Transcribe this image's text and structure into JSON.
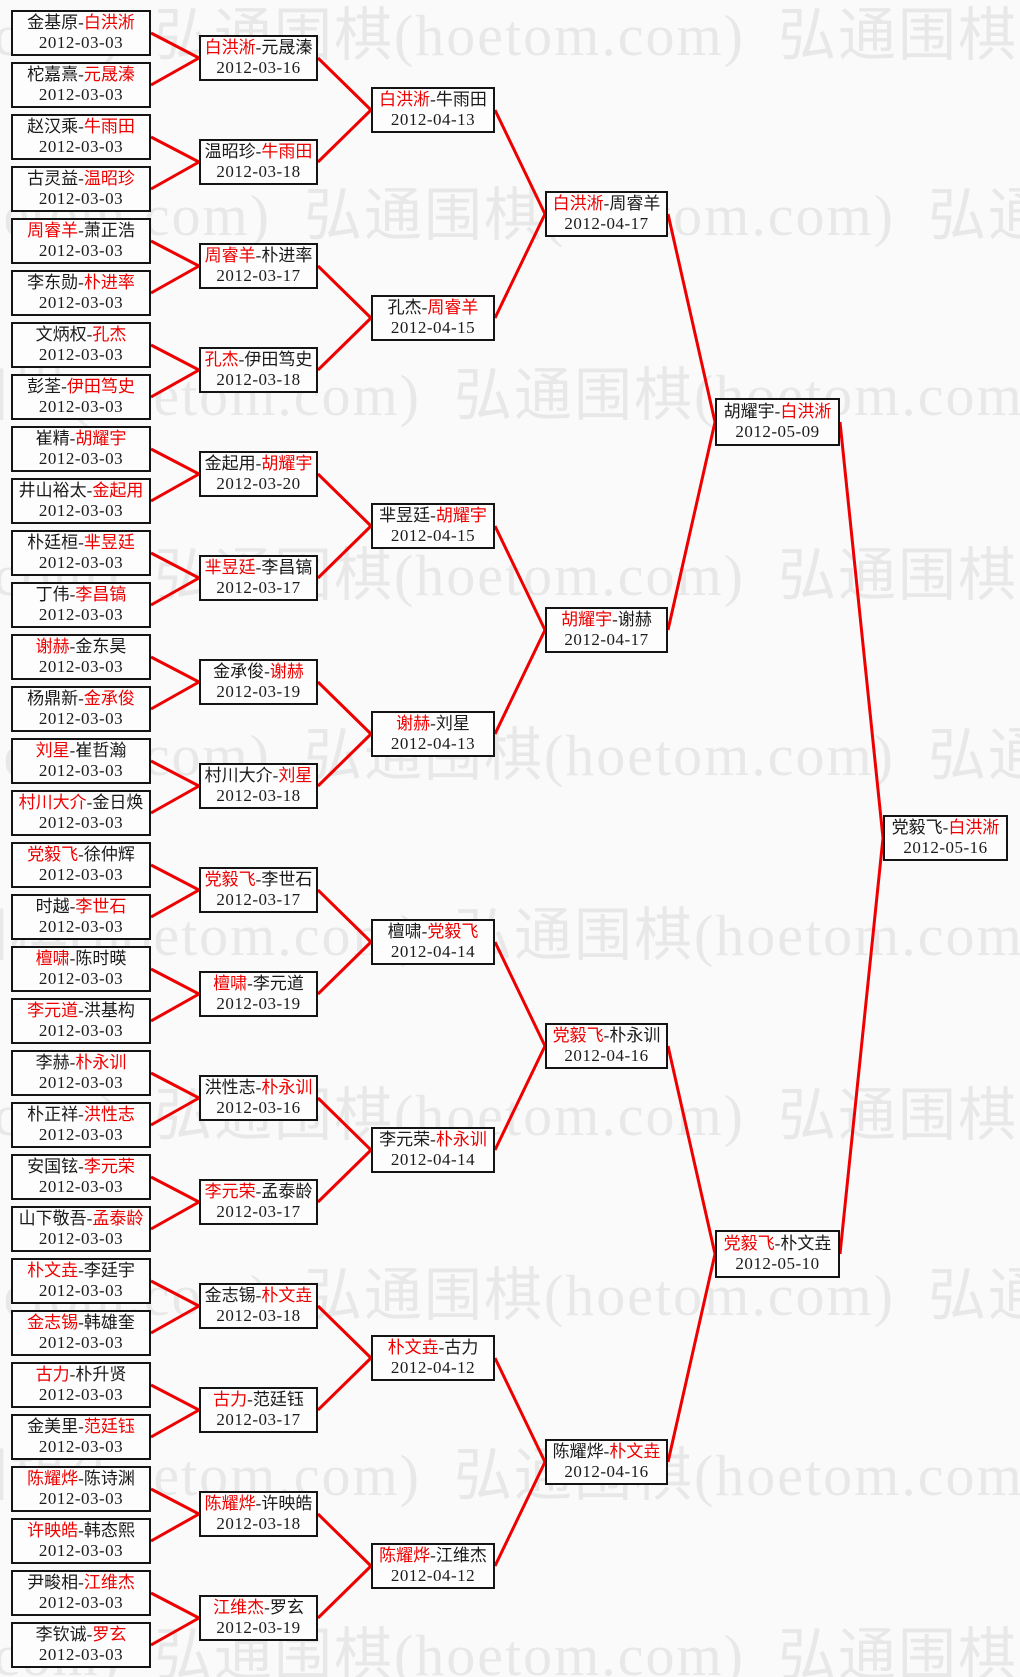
{
  "watermark": {
    "text": "弘通围棋(hoetom.com)"
  },
  "separator": "-",
  "colors": {
    "winner_red": "#ee0000",
    "connector_red": "#ee0000",
    "box_border": "#141414",
    "box_background": "#fdfdfd",
    "page_background": "#fafafa",
    "watermark_gray": "#e9e8e8"
  },
  "bracket": {
    "rounds": [
      {
        "name": "round-of-64",
        "matches": [
          {
            "p1": "金基原",
            "p2": "白洪淅",
            "winner": 2,
            "date": "2012-03-03"
          },
          {
            "p1": "柁嘉熹",
            "p2": "元晟溱",
            "winner": 2,
            "date": "2012-03-03"
          },
          {
            "p1": "赵汉乘",
            "p2": "牛雨田",
            "winner": 2,
            "date": "2012-03-03"
          },
          {
            "p1": "古灵益",
            "p2": "温昭珍",
            "winner": 2,
            "date": "2012-03-03"
          },
          {
            "p1": "周睿羊",
            "p2": "萧正浩",
            "winner": 1,
            "date": "2012-03-03"
          },
          {
            "p1": "李东勋",
            "p2": "朴进率",
            "winner": 2,
            "date": "2012-03-03"
          },
          {
            "p1": "文炳权",
            "p2": "孔杰",
            "winner": 2,
            "date": "2012-03-03"
          },
          {
            "p1": "彭荃",
            "p2": "伊田笃史",
            "winner": 2,
            "date": "2012-03-03"
          },
          {
            "p1": "崔精",
            "p2": "胡耀宇",
            "winner": 2,
            "date": "2012-03-03"
          },
          {
            "p1": "井山裕太",
            "p2": "金起用",
            "winner": 2,
            "date": "2012-03-03"
          },
          {
            "p1": "朴廷桓",
            "p2": "芈昱廷",
            "winner": 2,
            "date": "2012-03-03"
          },
          {
            "p1": "丁伟",
            "p2": "李昌镐",
            "winner": 2,
            "date": "2012-03-03"
          },
          {
            "p1": "谢赫",
            "p2": "金东昊",
            "winner": 1,
            "date": "2012-03-03"
          },
          {
            "p1": "杨鼎新",
            "p2": "金承俊",
            "winner": 2,
            "date": "2012-03-03"
          },
          {
            "p1": "刘星",
            "p2": "崔哲瀚",
            "winner": 1,
            "date": "2012-03-03"
          },
          {
            "p1": "村川大介",
            "p2": "金日焕",
            "winner": 1,
            "date": "2012-03-03"
          },
          {
            "p1": "党毅飞",
            "p2": "徐仲辉",
            "winner": 1,
            "date": "2012-03-03"
          },
          {
            "p1": "时越",
            "p2": "李世石",
            "winner": 2,
            "date": "2012-03-03"
          },
          {
            "p1": "檀啸",
            "p2": "陈时暎",
            "winner": 1,
            "date": "2012-03-03"
          },
          {
            "p1": "李元道",
            "p2": "洪基构",
            "winner": 1,
            "date": "2012-03-03"
          },
          {
            "p1": "李赫",
            "p2": "朴永训",
            "winner": 2,
            "date": "2012-03-03"
          },
          {
            "p1": "朴正祥",
            "p2": "洪性志",
            "winner": 2,
            "date": "2012-03-03"
          },
          {
            "p1": "安国铉",
            "p2": "李元荣",
            "winner": 2,
            "date": "2012-03-03"
          },
          {
            "p1": "山下敬吾",
            "p2": "孟泰龄",
            "winner": 2,
            "date": "2012-03-03"
          },
          {
            "p1": "朴文垚",
            "p2": "李廷宇",
            "winner": 1,
            "date": "2012-03-03"
          },
          {
            "p1": "金志锡",
            "p2": "韩雄奎",
            "winner": 1,
            "date": "2012-03-03"
          },
          {
            "p1": "古力",
            "p2": "朴升贤",
            "winner": 1,
            "date": "2012-03-03"
          },
          {
            "p1": "金美里",
            "p2": "范廷钰",
            "winner": 2,
            "date": "2012-03-03"
          },
          {
            "p1": "陈耀烨",
            "p2": "陈诗渊",
            "winner": 1,
            "date": "2012-03-03"
          },
          {
            "p1": "许映皓",
            "p2": "韩态熙",
            "winner": 1,
            "date": "2012-03-03"
          },
          {
            "p1": "尹畯相",
            "p2": "江维杰",
            "winner": 2,
            "date": "2012-03-03"
          },
          {
            "p1": "李钦诚",
            "p2": "罗玄",
            "winner": 2,
            "date": "2012-03-03"
          }
        ]
      },
      {
        "name": "round-of-32",
        "matches": [
          {
            "p1": "白洪淅",
            "p2": "元晟溱",
            "winner": 1,
            "date": "2012-03-16"
          },
          {
            "p1": "温昭珍",
            "p2": "牛雨田",
            "winner": 2,
            "date": "2012-03-18"
          },
          {
            "p1": "周睿羊",
            "p2": "朴进率",
            "winner": 1,
            "date": "2012-03-17"
          },
          {
            "p1": "孔杰",
            "p2": "伊田笃史",
            "winner": 1,
            "date": "2012-03-18"
          },
          {
            "p1": "金起用",
            "p2": "胡耀宇",
            "winner": 2,
            "date": "2012-03-20"
          },
          {
            "p1": "芈昱廷",
            "p2": "李昌镐",
            "winner": 1,
            "date": "2012-03-17"
          },
          {
            "p1": "金承俊",
            "p2": "谢赫",
            "winner": 2,
            "date": "2012-03-19"
          },
          {
            "p1": "村川大介",
            "p2": "刘星",
            "winner": 2,
            "date": "2012-03-18"
          },
          {
            "p1": "党毅飞",
            "p2": "李世石",
            "winner": 1,
            "date": "2012-03-17"
          },
          {
            "p1": "檀啸",
            "p2": "李元道",
            "winner": 1,
            "date": "2012-03-19"
          },
          {
            "p1": "洪性志",
            "p2": "朴永训",
            "winner": 2,
            "date": "2012-03-16"
          },
          {
            "p1": "李元荣",
            "p2": "孟泰龄",
            "winner": 1,
            "date": "2012-03-17"
          },
          {
            "p1": "金志锡",
            "p2": "朴文垚",
            "winner": 2,
            "date": "2012-03-18"
          },
          {
            "p1": "古力",
            "p2": "范廷钰",
            "winner": 1,
            "date": "2012-03-17"
          },
          {
            "p1": "陈耀烨",
            "p2": "许映皓",
            "winner": 1,
            "date": "2012-03-18"
          },
          {
            "p1": "江维杰",
            "p2": "罗玄",
            "winner": 1,
            "date": "2012-03-19"
          }
        ]
      },
      {
        "name": "round-of-16",
        "matches": [
          {
            "p1": "白洪淅",
            "p2": "牛雨田",
            "winner": 1,
            "date": "2012-04-13"
          },
          {
            "p1": "孔杰",
            "p2": "周睿羊",
            "winner": 2,
            "date": "2012-04-15"
          },
          {
            "p1": "芈昱廷",
            "p2": "胡耀宇",
            "winner": 2,
            "date": "2012-04-15"
          },
          {
            "p1": "谢赫",
            "p2": "刘星",
            "winner": 1,
            "date": "2012-04-13"
          },
          {
            "p1": "檀啸",
            "p2": "党毅飞",
            "winner": 2,
            "date": "2012-04-14"
          },
          {
            "p1": "李元荣",
            "p2": "朴永训",
            "winner": 2,
            "date": "2012-04-14"
          },
          {
            "p1": "朴文垚",
            "p2": "古力",
            "winner": 1,
            "date": "2012-04-12"
          },
          {
            "p1": "陈耀烨",
            "p2": "江维杰",
            "winner": 1,
            "date": "2012-04-12"
          }
        ]
      },
      {
        "name": "quarterfinals",
        "matches": [
          {
            "p1": "白洪淅",
            "p2": "周睿羊",
            "winner": 1,
            "date": "2012-04-17"
          },
          {
            "p1": "胡耀宇",
            "p2": "谢赫",
            "winner": 1,
            "date": "2012-04-17"
          },
          {
            "p1": "党毅飞",
            "p2": "朴永训",
            "winner": 1,
            "date": "2012-04-16"
          },
          {
            "p1": "陈耀烨",
            "p2": "朴文垚",
            "winner": 2,
            "date": "2012-04-16"
          }
        ]
      },
      {
        "name": "semifinals",
        "matches": [
          {
            "p1": "胡耀宇",
            "p2": "白洪淅",
            "winner": 2,
            "date": "2012-05-09"
          },
          {
            "p1": "党毅飞",
            "p2": "朴文垚",
            "winner": 1,
            "date": "2012-05-10"
          }
        ]
      },
      {
        "name": "final",
        "matches": [
          {
            "p1": "党毅飞",
            "p2": "白洪淅",
            "winner": 2,
            "date": "2012-05-16"
          }
        ]
      }
    ]
  }
}
